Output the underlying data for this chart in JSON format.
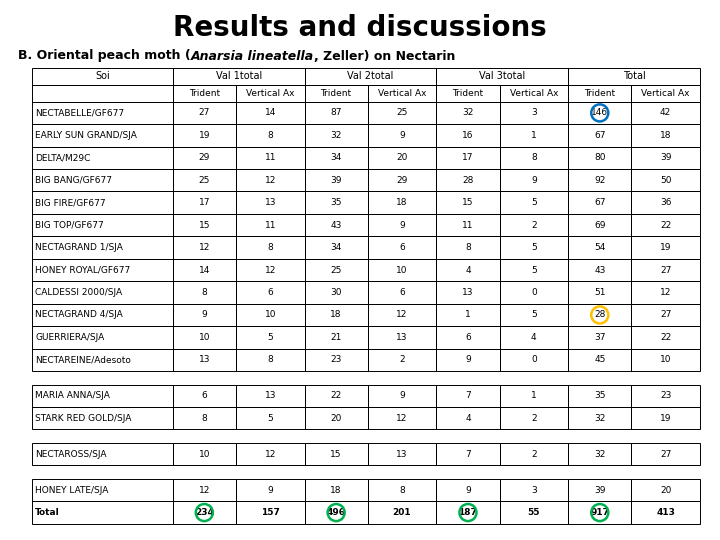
{
  "title": "Results and discussions",
  "rows": [
    [
      "NECTABELLE/GF677",
      27,
      14,
      87,
      25,
      32,
      3,
      146,
      42
    ],
    [
      "EARLY SUN GRAND/SJA",
      19,
      8,
      32,
      9,
      16,
      1,
      67,
      18
    ],
    [
      "DELTA/M29C",
      29,
      11,
      34,
      20,
      17,
      8,
      80,
      39
    ],
    [
      "BIG BANG/GF677",
      25,
      12,
      39,
      29,
      28,
      9,
      92,
      50
    ],
    [
      "BIG FIRE/GF677",
      17,
      13,
      35,
      18,
      15,
      5,
      67,
      36
    ],
    [
      "BIG TOP/GF677",
      15,
      11,
      43,
      9,
      11,
      2,
      69,
      22
    ],
    [
      "NECTAGRAND 1/SJA",
      12,
      8,
      34,
      6,
      8,
      5,
      54,
      19
    ],
    [
      "HONEY ROYAL/GF677",
      14,
      12,
      25,
      10,
      4,
      5,
      43,
      27
    ],
    [
      "CALDESSI 2000/SJA",
      8,
      6,
      30,
      6,
      13,
      0,
      51,
      12
    ],
    [
      "NECTAGRAND 4/SJA",
      9,
      10,
      18,
      12,
      1,
      5,
      28,
      27
    ],
    [
      "GUERRIERA/SJA",
      10,
      5,
      21,
      13,
      6,
      4,
      37,
      22
    ],
    [
      "NECTAREINE/Adesoto",
      13,
      8,
      23,
      2,
      9,
      0,
      45,
      10
    ],
    [
      "MARIA ANNA/SJA",
      6,
      13,
      22,
      9,
      7,
      1,
      35,
      23
    ],
    [
      "STARK RED GOLD/SJA",
      8,
      5,
      20,
      12,
      4,
      2,
      32,
      19
    ],
    [
      "NECTAROSS/SJA",
      10,
      12,
      15,
      13,
      7,
      2,
      32,
      27
    ],
    [
      "HONEY LATE/SJA",
      12,
      9,
      18,
      8,
      9,
      3,
      39,
      20
    ],
    [
      "Total",
      234,
      157,
      496,
      201,
      187,
      55,
      917,
      413
    ]
  ],
  "col_group_labels": [
    "Soi",
    "Val 1total",
    "Val 2total",
    "Val 3total",
    "Total"
  ],
  "sub_col_labels": [
    "Trident",
    "Vertical Ax"
  ],
  "circle_blue_row": 0,
  "circle_blue_col": 7,
  "circle_yellow_row": 9,
  "circle_yellow_col": 7,
  "circle_green_total_row": 16,
  "circle_green_cols": [
    1,
    3,
    5,
    7
  ],
  "extra_space_after_rows": [
    11,
    13,
    14
  ],
  "bg_color": "#ffffff",
  "text_color": "#000000",
  "grid_color": "#000000"
}
